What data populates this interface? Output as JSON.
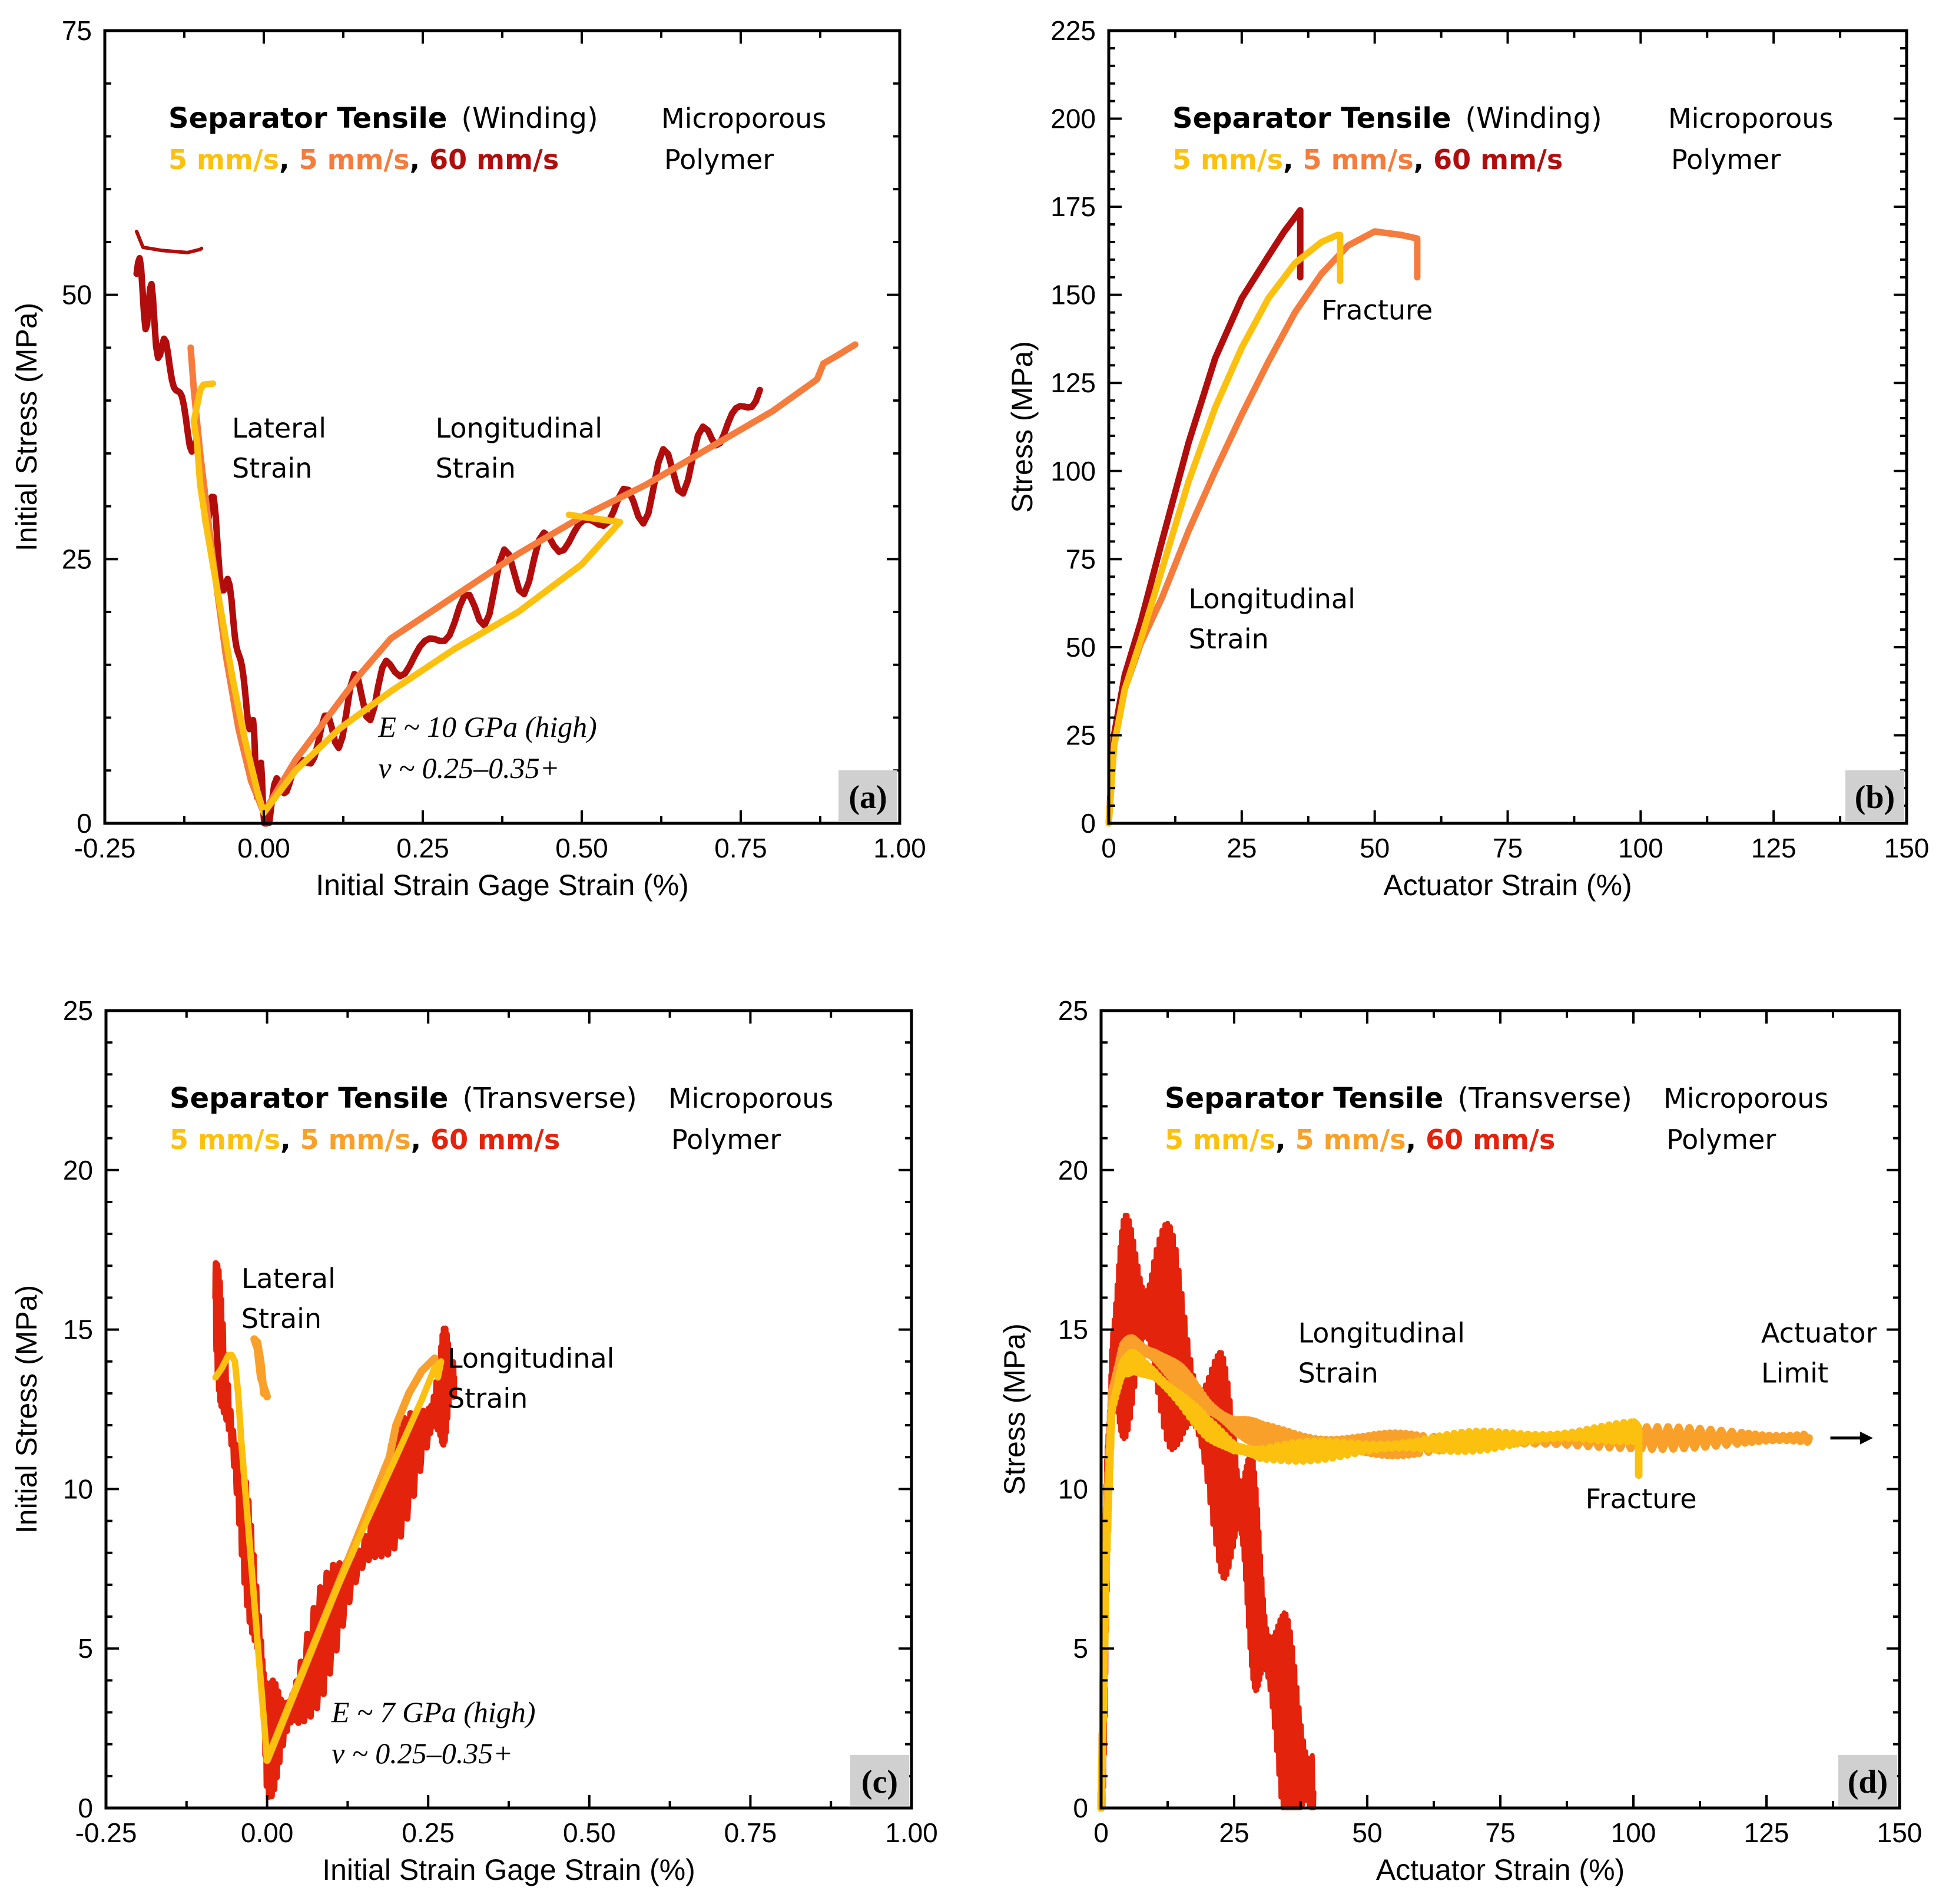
{
  "colors": {
    "yellow": "#fcc10f",
    "orange": "#f57c3c",
    "darkred": "#b10d0c",
    "red": "#e3230b",
    "lightorange": "#f9a02a"
  },
  "chart_data": [
    {
      "id": "a",
      "type": "line",
      "panel_label": "(a)",
      "xlabel": "Initial Strain Gage Strain (%)",
      "ylabel": "Initial Stress (MPa)",
      "xlim": [
        -0.25,
        1.0
      ],
      "ylim": [
        0,
        75
      ],
      "xticks": [
        -0.25,
        0,
        0.25,
        0.5,
        0.75,
        1.0
      ],
      "xtick_labels": [
        "-0.25",
        "0.00",
        "0.25",
        "0.50",
        "0.75",
        "1.00"
      ],
      "yticks": [
        0,
        25,
        50,
        75
      ],
      "ytick_labels": [
        "0",
        "25",
        "50",
        "75"
      ],
      "title_bold": "Separator Tensile",
      "title_paren": "(Winding)",
      "material": [
        "Microporous",
        "Polymer"
      ],
      "speeds": [
        {
          "text": "5 mm/s",
          "color": "#fcc10f"
        },
        {
          "text": "5 mm/s",
          "color": "#f57c3c"
        },
        {
          "text": "60 mm/s",
          "color": "#b10d0c"
        }
      ],
      "annotations": [
        {
          "lines": [
            "Lateral",
            "Strain"
          ],
          "x": -0.05,
          "y": 36.5
        },
        {
          "lines": [
            "Longitudinal",
            "Strain"
          ],
          "x": 0.27,
          "y": 36.5
        }
      ],
      "formula": [
        "E ~ 10 GPa (high)",
        "ν ~ 0.25–0.35+"
      ],
      "formula_pos": {
        "x": 0.18,
        "y": 8.2
      },
      "series": [
        {
          "name": "60 mm/s",
          "color": "#b10d0c",
          "width": 11,
          "osc": 3.0,
          "cycles": 24,
          "x": [
            -0.2,
            -0.17,
            -0.13,
            -0.09,
            -0.05,
            -0.02,
            0.0,
            0.05,
            0.12,
            0.2,
            0.3,
            0.4,
            0.5,
            0.6,
            0.7,
            0.78
          ],
          "y": [
            52,
            47,
            40,
            31,
            20,
            9,
            1,
            5,
            10,
            14,
            19,
            24,
            28,
            31,
            36,
            41
          ]
        },
        {
          "name": "60 mm/s initial",
          "color": "#b10d0c",
          "width": 6,
          "osc": 0,
          "cycles": 0,
          "x": [
            -0.2,
            -0.19,
            -0.16,
            -0.12,
            -0.1,
            -0.098
          ],
          "y": [
            56,
            54.5,
            54.2,
            54.0,
            54.3,
            54.4
          ]
        },
        {
          "name": "5 mm/s (orange)",
          "color": "#f57c3c",
          "width": 11,
          "osc": 0,
          "cycles": 0,
          "x": [
            -0.115,
            -0.11,
            -0.1,
            -0.08,
            -0.06,
            -0.04,
            -0.02,
            0.0,
            0.05,
            0.1,
            0.15,
            0.2,
            0.3,
            0.4,
            0.5,
            0.6,
            0.7,
            0.8,
            0.87,
            0.88,
            0.9,
            0.93
          ],
          "y": [
            45,
            41,
            35,
            25,
            16,
            9,
            4,
            1,
            6,
            10,
            14,
            17.5,
            21.5,
            25.5,
            29,
            32,
            35.5,
            39,
            42,
            43.5,
            44.2,
            45.3
          ]
        },
        {
          "name": "5 mm/s (yellow)",
          "color": "#fcc10f",
          "width": 11,
          "osc": 0,
          "cycles": 0,
          "x": [
            -0.08,
            -0.095,
            -0.1,
            -0.105,
            -0.11,
            -0.105,
            -0.1,
            -0.09,
            -0.07,
            -0.05,
            -0.03,
            -0.01,
            0.0,
            0.05,
            0.12,
            0.2,
            0.3,
            0.4,
            0.5,
            0.56,
            0.5,
            0.48
          ],
          "y": [
            41.6,
            41.5,
            41.0,
            39.5,
            38,
            36,
            32,
            28,
            21,
            14,
            8,
            3,
            1,
            5,
            9,
            12.5,
            16.5,
            20,
            24.5,
            28.5,
            29,
            29.2
          ]
        }
      ]
    },
    {
      "id": "b",
      "type": "line",
      "panel_label": "(b)",
      "xlabel": "Actuator Strain (%)",
      "ylabel": "Stress (MPa)",
      "xlim": [
        0,
        150
      ],
      "ylim": [
        0,
        225
      ],
      "xticks": [
        0,
        25,
        50,
        75,
        100,
        125,
        150
      ],
      "xtick_labels": [
        "0",
        "25",
        "50",
        "75",
        "100",
        "125",
        "150"
      ],
      "yticks": [
        0,
        25,
        50,
        75,
        100,
        125,
        150,
        175,
        200,
        225
      ],
      "ytick_labels": [
        "0",
        "25",
        "50",
        "75",
        "100",
        "125",
        "150",
        "175",
        "200",
        "225"
      ],
      "title_bold": "Separator Tensile",
      "title_paren": "(Winding)",
      "material": [
        "Microporous",
        "Polymer"
      ],
      "speeds": [
        {
          "text": "5 mm/s",
          "color": "#fcc10f"
        },
        {
          "text": "5 mm/s",
          "color": "#f57c3c"
        },
        {
          "text": "60 mm/s",
          "color": "#b10d0c"
        }
      ],
      "annotations": [
        {
          "lines": [
            "Fracture"
          ],
          "x": 40,
          "y": 143
        },
        {
          "lines": [
            "Longitudinal",
            "Strain"
          ],
          "x": 15,
          "y": 61
        }
      ],
      "formula": [],
      "formula_pos": {
        "x": 0,
        "y": 0
      },
      "series": [
        {
          "name": "60 mm/s",
          "color": "#b10d0c",
          "width": 11,
          "osc": 0,
          "cycles": 0,
          "x": [
            0,
            1,
            3,
            6,
            10,
            15,
            20,
            25,
            30,
            33,
            35,
            36,
            36
          ],
          "y": [
            0,
            25,
            42,
            57,
            80,
            108,
            132,
            149,
            161,
            168,
            172,
            174,
            155
          ]
        },
        {
          "name": "5 mm/s (orange)",
          "color": "#f57c3c",
          "width": 11,
          "osc": 0,
          "cycles": 0,
          "x": [
            0,
            1,
            3,
            6,
            10,
            15,
            20,
            25,
            30,
            35,
            40,
            45,
            50,
            55,
            58,
            58
          ],
          "y": [
            0,
            22,
            38,
            51,
            64,
            83,
            100,
            116,
            131,
            145,
            156,
            164,
            168,
            167,
            166,
            155
          ]
        },
        {
          "name": "5 mm/s (yellow)",
          "color": "#fcc10f",
          "width": 11,
          "osc": 0,
          "cycles": 0,
          "x": [
            0,
            1,
            3,
            6,
            10,
            15,
            20,
            25,
            30,
            35,
            40,
            43,
            43.5,
            43.5
          ],
          "y": [
            0,
            22,
            38,
            52,
            72,
            97,
            118,
            135,
            149,
            159,
            165,
            167,
            167,
            154
          ]
        }
      ]
    },
    {
      "id": "c",
      "type": "line",
      "panel_label": "(c)",
      "xlabel": "Initial Strain Gage Strain (%)",
      "ylabel": "Initial Stress (MPa)",
      "xlim": [
        -0.25,
        1.0
      ],
      "ylim": [
        0,
        25
      ],
      "xticks": [
        -0.25,
        0,
        0.25,
        0.5,
        0.75,
        1.0
      ],
      "xtick_labels": [
        "-0.25",
        "0.00",
        "0.25",
        "0.50",
        "0.75",
        "1.00"
      ],
      "yticks": [
        0,
        5,
        10,
        15,
        20,
        25
      ],
      "ytick_labels": [
        "0",
        "5",
        "10",
        "15",
        "20",
        "25"
      ],
      "title_bold": "Separator Tensile",
      "title_paren": "(Transverse)",
      "material": [
        "Microporous",
        "Polymer"
      ],
      "speeds": [
        {
          "text": "5 mm/s",
          "color": "#fcc10f"
        },
        {
          "text": "5 mm/s",
          "color": "#f9a02a"
        },
        {
          "text": "60 mm/s",
          "color": "#e3230b"
        }
      ],
      "annotations": [
        {
          "lines": [
            "Lateral",
            "Strain"
          ],
          "x": -0.04,
          "y": 16.3
        },
        {
          "lines": [
            "Longitudinal",
            "Strain"
          ],
          "x": 0.28,
          "y": 13.8
        }
      ],
      "formula": [
        "E ~ 7 GPa (high)",
        "ν ~ 0.25–0.35+"
      ],
      "formula_pos": {
        "x": 0.1,
        "y": 2.7
      },
      "series": [
        {
          "name": "60 mm/s",
          "color": "#e3230b",
          "width": 11,
          "osc": 1.8,
          "cycles": 70,
          "x": [
            -0.08,
            -0.07,
            -0.05,
            -0.03,
            -0.01,
            0.0,
            0.02,
            0.05,
            0.1,
            0.15,
            0.2,
            0.25,
            0.27,
            0.28,
            0.29
          ],
          "y": [
            16,
            14,
            11,
            8,
            5,
            2,
            2.5,
            3.5,
            6,
            8,
            10,
            12,
            13,
            13.5,
            13.5
          ]
        },
        {
          "name": "5 mm/s (orange)",
          "color": "#f9a02a",
          "width": 13,
          "osc": 0,
          "cycles": 0,
          "x": [
            0.0,
            -0.01,
            -0.015,
            -0.02,
            -0.015,
            -0.01,
            -0.005
          ],
          "y": [
            12.9,
            13.5,
            14.4,
            14.7,
            14.6,
            14.0,
            13.0
          ]
        },
        {
          "name": "5 mm/s (orange) longitudinal",
          "color": "#f9a02a",
          "width": 13,
          "osc": 0,
          "cycles": 0,
          "x": [
            0.0,
            0.05,
            0.1,
            0.15,
            0.19,
            0.2,
            0.22,
            0.24,
            0.26
          ],
          "y": [
            1.5,
            4,
            6.5,
            9,
            11,
            12,
            13,
            13.7,
            14.1
          ]
        },
        {
          "name": "5 mm/s (yellow)",
          "color": "#fcc10f",
          "width": 11,
          "osc": 0,
          "cycles": 0,
          "x": [
            -0.08,
            -0.07,
            -0.06,
            -0.055,
            -0.05,
            -0.045,
            -0.04,
            -0.03,
            -0.02,
            -0.01,
            0.0,
            0.02,
            0.05,
            0.1,
            0.15,
            0.2,
            0.24,
            0.26,
            0.27,
            0.265
          ],
          "y": [
            13.5,
            13.8,
            14.2,
            14.2,
            14.0,
            13.0,
            11.5,
            9.0,
            6.5,
            4,
            1.5,
            2.5,
            4,
            6.5,
            8.8,
            11,
            12.8,
            13.8,
            14,
            13.5
          ]
        }
      ]
    },
    {
      "id": "d",
      "type": "line",
      "panel_label": "(d)",
      "xlabel": "Actuator Strain (%)",
      "ylabel": "Stress (MPa)",
      "xlim": [
        0,
        150
      ],
      "ylim": [
        0,
        25
      ],
      "xticks": [
        0,
        25,
        50,
        75,
        100,
        125,
        150
      ],
      "xtick_labels": [
        "0",
        "25",
        "50",
        "75",
        "100",
        "125",
        "150"
      ],
      "yticks": [
        0,
        5,
        10,
        15,
        20,
        25
      ],
      "ytick_labels": [
        "0",
        "5",
        "10",
        "15",
        "20",
        "25"
      ],
      "title_bold": "Separator Tensile",
      "title_paren": "(Transverse)",
      "material": [
        "Microporous",
        "Polymer"
      ],
      "speeds": [
        {
          "text": "5 mm/s",
          "color": "#fcc10f"
        },
        {
          "text": "5 mm/s",
          "color": "#f9a02a"
        },
        {
          "text": "60 mm/s",
          "color": "#e3230b"
        }
      ],
      "annotations": [
        {
          "lines": [
            "Longitudinal",
            "Strain"
          ],
          "x": 37,
          "y": 14.6
        },
        {
          "lines": [
            "Fracture"
          ],
          "x": 91,
          "y": 9.4
        },
        {
          "lines": [
            "Actuator",
            "Limit"
          ],
          "x": 124,
          "y": 14.6
        }
      ],
      "formula": [],
      "formula_pos": {
        "x": 0,
        "y": 0
      },
      "arrow": {
        "x1": 137,
        "x2": 145,
        "y": 11.6
      },
      "series": [
        {
          "name": "60 mm/s",
          "color": "#e3230b",
          "width": 8,
          "osc": 3.5,
          "cycles": 110,
          "x": [
            0,
            1,
            2,
            4,
            7,
            10,
            14,
            18,
            22,
            25,
            27,
            29,
            31,
            34,
            37,
            40
          ],
          "y": [
            0,
            8,
            14,
            15,
            15.5,
            15.5,
            14.5,
            12.5,
            11,
            10,
            9,
            7,
            5,
            3,
            1.5,
            0.5
          ]
        },
        {
          "name": "5 mm/s (orange)",
          "color": "#f9a02a",
          "width": 13,
          "osc": 0.35,
          "cycles": 160,
          "x": [
            0,
            1,
            2,
            4,
            6,
            10,
            15,
            20,
            25,
            30,
            40,
            50,
            60,
            80,
            100,
            120,
            133
          ],
          "y": [
            0,
            9,
            13,
            14.2,
            14.5,
            14.2,
            13.5,
            12.6,
            12,
            11.7,
            11.5,
            11.4,
            11.4,
            11.5,
            11.6,
            11.6,
            11.6
          ]
        },
        {
          "name": "5 mm/s (yellow)",
          "color": "#fcc10f",
          "width": 13,
          "osc": 0.3,
          "cycles": 130,
          "x": [
            0,
            1,
            2,
            4,
            6,
            10,
            15,
            20,
            25,
            30,
            40,
            50,
            60,
            70,
            80,
            90,
            100,
            101,
            101
          ],
          "y": [
            0,
            8,
            12.5,
            13.8,
            14,
            13.6,
            12.8,
            11.9,
            11.3,
            11.1,
            11.2,
            11.3,
            11.4,
            11.5,
            11.6,
            11.7,
            11.8,
            11.8,
            10.5
          ]
        }
      ]
    }
  ]
}
